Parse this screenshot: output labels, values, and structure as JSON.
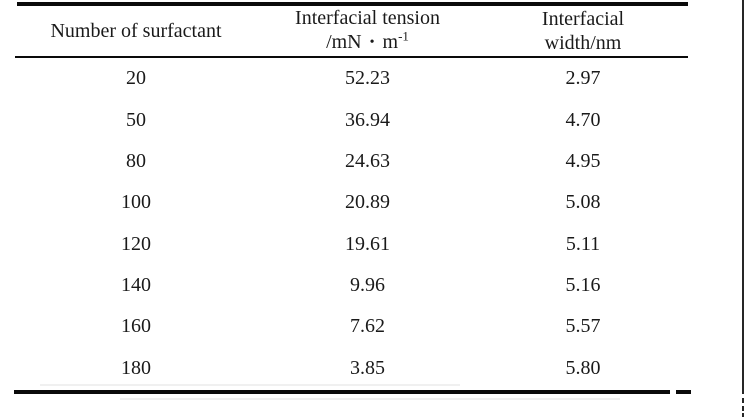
{
  "colors": {
    "background": "#ffffff",
    "ink": "#1a1a1a",
    "rule": "#0a0a0a"
  },
  "table": {
    "header": {
      "col1": "Number of surfactant",
      "col2_line1": "Interfacial tension",
      "col2_unit_prefix": "/mN",
      "col2_unit_dot": "•",
      "col2_unit_base": "m",
      "col2_unit_sup": "-1",
      "col3_line1": "Interfacial",
      "col3_line2": "width/nm"
    },
    "rows": [
      {
        "count": "20",
        "tension": "52.23",
        "width": "2.97"
      },
      {
        "count": "50",
        "tension": "36.94",
        "width": "4.70"
      },
      {
        "count": "80",
        "tension": "24.63",
        "width": "4.95"
      },
      {
        "count": "100",
        "tension": "20.89",
        "width": "5.08"
      },
      {
        "count": "120",
        "tension": "19.61",
        "width": "5.11"
      },
      {
        "count": "140",
        "tension": "9.96",
        "width": "5.16"
      },
      {
        "count": "160",
        "tension": "7.62",
        "width": "5.57"
      },
      {
        "count": "180",
        "tension": "3.85",
        "width": "5.80"
      }
    ]
  },
  "chart_data": {
    "type": "table",
    "columns": [
      "Number of surfactant",
      "Interfacial tension /mN·m⁻¹",
      "Interfacial width/nm"
    ],
    "rows": [
      [
        20,
        52.23,
        2.97
      ],
      [
        50,
        36.94,
        4.7
      ],
      [
        80,
        24.63,
        4.95
      ],
      [
        100,
        20.89,
        5.08
      ],
      [
        120,
        19.61,
        5.11
      ],
      [
        140,
        9.96,
        5.16
      ],
      [
        160,
        7.62,
        5.57
      ],
      [
        180,
        3.85,
        5.8
      ]
    ]
  }
}
